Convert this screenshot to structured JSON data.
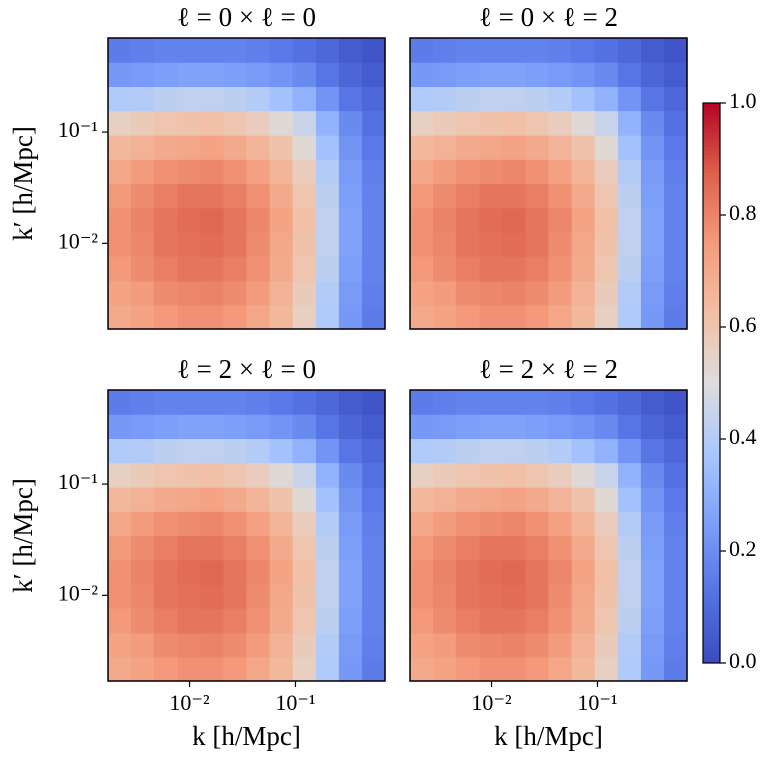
{
  "chart_data": [
    {
      "type": "heatmap",
      "title": "ℓ = 0 × ℓ = 0",
      "ylabel": "k′ [h/Mpc]",
      "xscale": "log",
      "yscale": "log",
      "xlim": [
        0.0017,
        0.7
      ],
      "ylim": [
        0.0017,
        0.7
      ],
      "yticks": [
        {
          "value": 0.01,
          "label": "10⁻²"
        },
        {
          "value": 0.1,
          "label": "10⁻¹"
        }
      ],
      "colormap": "coolwarm",
      "clim": [
        0,
        1
      ],
      "xbins": [
        0.0017,
        0.0028,
        0.0046,
        0.0077,
        0.0126,
        0.0209,
        0.0345,
        0.057,
        0.094,
        0.156,
        0.257,
        0.425,
        0.7
      ],
      "ybins": [
        0.0017,
        0.0028,
        0.0046,
        0.0077,
        0.0126,
        0.0209,
        0.0345,
        0.057,
        0.094,
        0.156,
        0.257,
        0.425,
        0.7
      ],
      "values": [
        [
          0.7,
          0.72,
          0.75,
          0.77,
          0.77,
          0.75,
          0.71,
          0.65,
          0.56,
          0.39,
          0.23,
          0.15
        ],
        [
          0.72,
          0.74,
          0.78,
          0.79,
          0.8,
          0.78,
          0.74,
          0.67,
          0.58,
          0.4,
          0.24,
          0.16
        ],
        [
          0.75,
          0.78,
          0.81,
          0.83,
          0.83,
          0.81,
          0.77,
          0.7,
          0.6,
          0.42,
          0.25,
          0.17
        ],
        [
          0.77,
          0.79,
          0.83,
          0.84,
          0.85,
          0.83,
          0.78,
          0.71,
          0.61,
          0.43,
          0.26,
          0.17
        ],
        [
          0.77,
          0.8,
          0.83,
          0.85,
          0.86,
          0.83,
          0.79,
          0.72,
          0.62,
          0.43,
          0.26,
          0.17
        ],
        [
          0.75,
          0.78,
          0.81,
          0.83,
          0.83,
          0.81,
          0.77,
          0.7,
          0.6,
          0.42,
          0.25,
          0.17
        ],
        [
          0.71,
          0.74,
          0.77,
          0.78,
          0.79,
          0.77,
          0.73,
          0.66,
          0.57,
          0.4,
          0.24,
          0.16
        ],
        [
          0.65,
          0.67,
          0.7,
          0.71,
          0.72,
          0.7,
          0.66,
          0.61,
          0.52,
          0.36,
          0.22,
          0.14
        ],
        [
          0.56,
          0.58,
          0.6,
          0.61,
          0.62,
          0.6,
          0.57,
          0.52,
          0.45,
          0.31,
          0.19,
          0.12
        ],
        [
          0.39,
          0.4,
          0.42,
          0.43,
          0.43,
          0.42,
          0.4,
          0.36,
          0.31,
          0.22,
          0.13,
          0.09
        ],
        [
          0.23,
          0.24,
          0.25,
          0.26,
          0.26,
          0.25,
          0.24,
          0.22,
          0.19,
          0.13,
          0.08,
          0.05
        ],
        [
          0.15,
          0.16,
          0.17,
          0.17,
          0.17,
          0.17,
          0.16,
          0.14,
          0.12,
          0.09,
          0.05,
          0.03
        ]
      ]
    },
    {
      "type": "heatmap",
      "title": "ℓ = 0 × ℓ = 2",
      "xscale": "log",
      "yscale": "log",
      "xlim": [
        0.0017,
        0.7
      ],
      "ylim": [
        0.0017,
        0.7
      ],
      "colormap": "coolwarm",
      "clim": [
        0,
        1
      ],
      "xbins": [
        0.0017,
        0.0028,
        0.0046,
        0.0077,
        0.0126,
        0.0209,
        0.0345,
        0.057,
        0.094,
        0.156,
        0.257,
        0.425,
        0.7
      ],
      "ybins": [
        0.0017,
        0.0028,
        0.0046,
        0.0077,
        0.0126,
        0.0209,
        0.0345,
        0.057,
        0.094,
        0.156,
        0.257,
        0.425,
        0.7
      ],
      "values": [
        [
          0.7,
          0.72,
          0.75,
          0.77,
          0.77,
          0.75,
          0.71,
          0.65,
          0.56,
          0.39,
          0.23,
          0.15
        ],
        [
          0.72,
          0.74,
          0.78,
          0.79,
          0.8,
          0.78,
          0.74,
          0.67,
          0.58,
          0.4,
          0.24,
          0.16
        ],
        [
          0.75,
          0.78,
          0.81,
          0.83,
          0.83,
          0.81,
          0.77,
          0.7,
          0.6,
          0.42,
          0.25,
          0.17
        ],
        [
          0.77,
          0.79,
          0.83,
          0.84,
          0.85,
          0.83,
          0.78,
          0.71,
          0.61,
          0.43,
          0.26,
          0.17
        ],
        [
          0.77,
          0.8,
          0.83,
          0.85,
          0.86,
          0.83,
          0.79,
          0.72,
          0.62,
          0.43,
          0.26,
          0.17
        ],
        [
          0.75,
          0.78,
          0.81,
          0.83,
          0.83,
          0.81,
          0.77,
          0.7,
          0.6,
          0.42,
          0.25,
          0.17
        ],
        [
          0.71,
          0.74,
          0.77,
          0.78,
          0.79,
          0.77,
          0.73,
          0.66,
          0.57,
          0.4,
          0.24,
          0.16
        ],
        [
          0.65,
          0.67,
          0.7,
          0.71,
          0.72,
          0.7,
          0.66,
          0.61,
          0.52,
          0.36,
          0.22,
          0.14
        ],
        [
          0.56,
          0.58,
          0.6,
          0.61,
          0.62,
          0.6,
          0.57,
          0.52,
          0.45,
          0.31,
          0.19,
          0.12
        ],
        [
          0.39,
          0.4,
          0.42,
          0.43,
          0.43,
          0.42,
          0.4,
          0.36,
          0.31,
          0.22,
          0.13,
          0.09
        ],
        [
          0.23,
          0.24,
          0.25,
          0.26,
          0.26,
          0.25,
          0.24,
          0.22,
          0.19,
          0.13,
          0.08,
          0.05
        ],
        [
          0.15,
          0.16,
          0.17,
          0.17,
          0.17,
          0.17,
          0.16,
          0.14,
          0.12,
          0.09,
          0.05,
          0.03
        ]
      ]
    },
    {
      "type": "heatmap",
      "title": "ℓ = 2 × ℓ = 0",
      "xlabel": "k [h/Mpc]",
      "ylabel": "k′ [h/Mpc]",
      "xscale": "log",
      "yscale": "log",
      "xlim": [
        0.0017,
        0.7
      ],
      "ylim": [
        0.0017,
        0.7
      ],
      "xticks": [
        {
          "value": 0.01,
          "label": "10⁻²"
        },
        {
          "value": 0.1,
          "label": "10⁻¹"
        }
      ],
      "yticks": [
        {
          "value": 0.01,
          "label": "10⁻²"
        },
        {
          "value": 0.1,
          "label": "10⁻¹"
        }
      ],
      "colormap": "coolwarm",
      "clim": [
        0,
        1
      ],
      "xbins": [
        0.0017,
        0.0028,
        0.0046,
        0.0077,
        0.0126,
        0.0209,
        0.0345,
        0.057,
        0.094,
        0.156,
        0.257,
        0.425,
        0.7
      ],
      "ybins": [
        0.0017,
        0.0028,
        0.0046,
        0.0077,
        0.0126,
        0.0209,
        0.0345,
        0.057,
        0.094,
        0.156,
        0.257,
        0.425,
        0.7
      ],
      "values": [
        [
          0.7,
          0.72,
          0.75,
          0.77,
          0.77,
          0.75,
          0.71,
          0.65,
          0.56,
          0.39,
          0.23,
          0.15
        ],
        [
          0.72,
          0.74,
          0.78,
          0.79,
          0.8,
          0.78,
          0.74,
          0.67,
          0.58,
          0.4,
          0.24,
          0.16
        ],
        [
          0.75,
          0.78,
          0.81,
          0.83,
          0.83,
          0.81,
          0.77,
          0.7,
          0.6,
          0.42,
          0.25,
          0.17
        ],
        [
          0.77,
          0.79,
          0.83,
          0.84,
          0.85,
          0.83,
          0.78,
          0.71,
          0.61,
          0.43,
          0.26,
          0.17
        ],
        [
          0.77,
          0.8,
          0.83,
          0.85,
          0.86,
          0.83,
          0.79,
          0.72,
          0.62,
          0.43,
          0.26,
          0.17
        ],
        [
          0.75,
          0.78,
          0.81,
          0.83,
          0.83,
          0.81,
          0.77,
          0.7,
          0.6,
          0.42,
          0.25,
          0.17
        ],
        [
          0.71,
          0.74,
          0.77,
          0.78,
          0.79,
          0.77,
          0.73,
          0.66,
          0.57,
          0.4,
          0.24,
          0.16
        ],
        [
          0.65,
          0.67,
          0.7,
          0.71,
          0.72,
          0.7,
          0.66,
          0.61,
          0.52,
          0.36,
          0.22,
          0.14
        ],
        [
          0.56,
          0.58,
          0.6,
          0.61,
          0.62,
          0.6,
          0.57,
          0.52,
          0.45,
          0.31,
          0.19,
          0.12
        ],
        [
          0.39,
          0.4,
          0.42,
          0.43,
          0.43,
          0.42,
          0.4,
          0.36,
          0.31,
          0.22,
          0.13,
          0.09
        ],
        [
          0.23,
          0.24,
          0.25,
          0.26,
          0.26,
          0.25,
          0.24,
          0.22,
          0.19,
          0.13,
          0.08,
          0.05
        ],
        [
          0.15,
          0.16,
          0.17,
          0.17,
          0.17,
          0.17,
          0.16,
          0.14,
          0.12,
          0.09,
          0.05,
          0.03
        ]
      ]
    },
    {
      "type": "heatmap",
      "title": "ℓ = 2 × ℓ = 2",
      "xlabel": "k [h/Mpc]",
      "xscale": "log",
      "yscale": "log",
      "xlim": [
        0.0017,
        0.7
      ],
      "ylim": [
        0.0017,
        0.7
      ],
      "xticks": [
        {
          "value": 0.01,
          "label": "10⁻²"
        },
        {
          "value": 0.1,
          "label": "10⁻¹"
        }
      ],
      "colormap": "coolwarm",
      "clim": [
        0,
        1
      ],
      "xbins": [
        0.0017,
        0.0028,
        0.0046,
        0.0077,
        0.0126,
        0.0209,
        0.0345,
        0.057,
        0.094,
        0.156,
        0.257,
        0.425,
        0.7
      ],
      "ybins": [
        0.0017,
        0.0028,
        0.0046,
        0.0077,
        0.0126,
        0.0209,
        0.0345,
        0.057,
        0.094,
        0.156,
        0.257,
        0.425,
        0.7
      ],
      "values": [
        [
          0.7,
          0.72,
          0.75,
          0.77,
          0.77,
          0.75,
          0.71,
          0.65,
          0.56,
          0.39,
          0.23,
          0.15
        ],
        [
          0.72,
          0.74,
          0.78,
          0.79,
          0.8,
          0.78,
          0.74,
          0.67,
          0.58,
          0.4,
          0.24,
          0.16
        ],
        [
          0.75,
          0.78,
          0.81,
          0.83,
          0.83,
          0.81,
          0.77,
          0.7,
          0.6,
          0.42,
          0.25,
          0.17
        ],
        [
          0.77,
          0.79,
          0.83,
          0.84,
          0.85,
          0.83,
          0.78,
          0.71,
          0.61,
          0.43,
          0.26,
          0.17
        ],
        [
          0.77,
          0.8,
          0.83,
          0.85,
          0.86,
          0.83,
          0.79,
          0.72,
          0.62,
          0.43,
          0.26,
          0.17
        ],
        [
          0.75,
          0.78,
          0.81,
          0.83,
          0.83,
          0.81,
          0.77,
          0.7,
          0.6,
          0.42,
          0.25,
          0.17
        ],
        [
          0.71,
          0.74,
          0.77,
          0.78,
          0.79,
          0.77,
          0.73,
          0.66,
          0.57,
          0.4,
          0.24,
          0.16
        ],
        [
          0.65,
          0.67,
          0.7,
          0.71,
          0.72,
          0.7,
          0.66,
          0.61,
          0.52,
          0.36,
          0.22,
          0.14
        ],
        [
          0.56,
          0.58,
          0.6,
          0.61,
          0.62,
          0.6,
          0.57,
          0.52,
          0.45,
          0.31,
          0.19,
          0.12
        ],
        [
          0.39,
          0.4,
          0.42,
          0.43,
          0.43,
          0.42,
          0.4,
          0.36,
          0.31,
          0.22,
          0.13,
          0.09
        ],
        [
          0.23,
          0.24,
          0.25,
          0.26,
          0.26,
          0.25,
          0.24,
          0.22,
          0.19,
          0.13,
          0.08,
          0.05
        ],
        [
          0.15,
          0.16,
          0.17,
          0.17,
          0.17,
          0.17,
          0.16,
          0.14,
          0.12,
          0.09,
          0.05,
          0.03
        ]
      ]
    },
    {
      "type": "colorbar",
      "colormap": "coolwarm",
      "ylim": [
        0,
        1
      ],
      "yticks": [
        {
          "value": 0,
          "label": "0.0"
        },
        {
          "value": 0.2,
          "label": "0.2"
        },
        {
          "value": 0.4,
          "label": "0.4"
        },
        {
          "value": 0.6,
          "label": "0.6"
        },
        {
          "value": 0.8,
          "label": "0.8"
        },
        {
          "value": 1,
          "label": "1.0"
        }
      ]
    }
  ]
}
